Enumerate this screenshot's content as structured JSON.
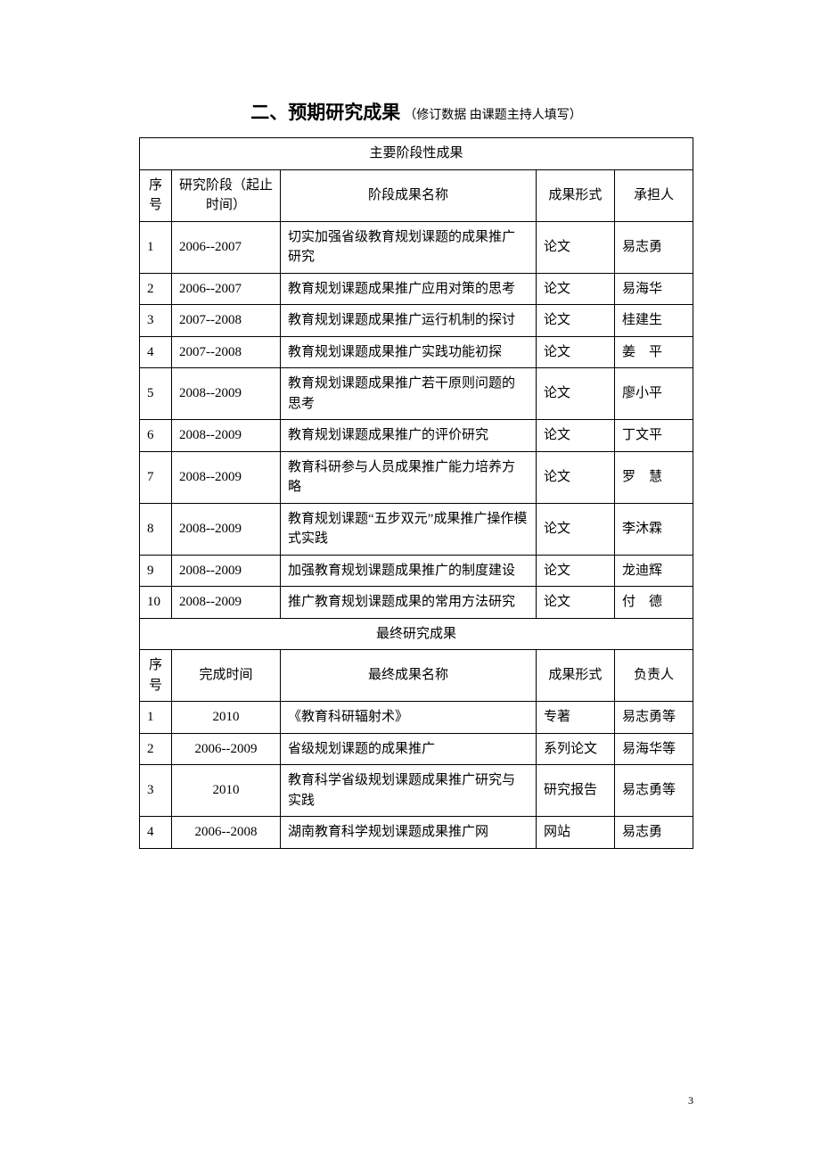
{
  "title_main": "二、预期研究成果",
  "title_sub": "（修订数据 由课题主持人填写）",
  "section1_header": "主要阶段性成果",
  "table1_headers": {
    "seq": "序号",
    "stage": "研究阶段（起止时间）",
    "name": "阶段成果名称",
    "form": "成果形式",
    "person": "承担人"
  },
  "table1_rows": [
    {
      "seq": "1",
      "stage": "2006--2007",
      "name": "切实加强省级教育规划课题的成果推广研究",
      "form": "论文",
      "person": "易志勇"
    },
    {
      "seq": "2",
      "stage": "2006--2007",
      "name": "教育规划课题成果推广应用对策的思考",
      "form": "论文",
      "person": "易海华"
    },
    {
      "seq": "3",
      "stage": "2007--2008",
      "name": "教育规划课题成果推广运行机制的探讨",
      "form": "论文",
      "person": "桂建生"
    },
    {
      "seq": "4",
      "stage": "2007--2008",
      "name": "教育规划课题成果推广实践功能初探",
      "form": "论文",
      "person": "姜　平"
    },
    {
      "seq": "5",
      "stage": "2008--2009",
      "name": "教育规划课题成果推广若干原则问题的思考",
      "form": "论文",
      "person": "廖小平"
    },
    {
      "seq": "6",
      "stage": "2008--2009",
      "name": "教育规划课题成果推广的评价研究",
      "form": "论文",
      "person": "丁文平"
    },
    {
      "seq": "7",
      "stage": "2008--2009",
      "name": "教育科研参与人员成果推广能力培养方略",
      "form": "论文",
      "person": "罗　慧"
    },
    {
      "seq": "8",
      "stage": "2008--2009",
      "name": "教育规划课题“五步双元”成果推广操作模式实践",
      "form": "论文",
      "person": "李沐霖"
    },
    {
      "seq": "9",
      "stage": "2008--2009",
      "name": "加强教育规划课题成果推广的制度建设",
      "form": "论文",
      "person": "龙迪辉"
    },
    {
      "seq": "10",
      "stage": "2008--2009",
      "name": "推广教育规划课题成果的常用方法研究",
      "form": "论文",
      "person": "付　德"
    }
  ],
  "section2_header": "最终研究成果",
  "table2_headers": {
    "seq": "序号",
    "time": "完成时间",
    "name": "最终成果名称",
    "form": "成果形式",
    "person": "负责人"
  },
  "table2_rows": [
    {
      "seq": "1",
      "time": "2010",
      "name": "《教育科研辐射术》",
      "form": "专著",
      "person": "易志勇等"
    },
    {
      "seq": "2",
      "time": "2006--2009",
      "name": "省级规划课题的成果推广",
      "form": "系列论文",
      "person": "易海华等"
    },
    {
      "seq": "3",
      "time": "2010",
      "name": "教育科学省级规划课题成果推广研究与实践",
      "form": "研究报告",
      "person": "易志勇等"
    },
    {
      "seq": "4",
      "time": "2006--2008",
      "name": "湖南教育科学规划课题成果推广网",
      "form": "网站",
      "person": "易志勇"
    }
  ],
  "page_number": "3"
}
